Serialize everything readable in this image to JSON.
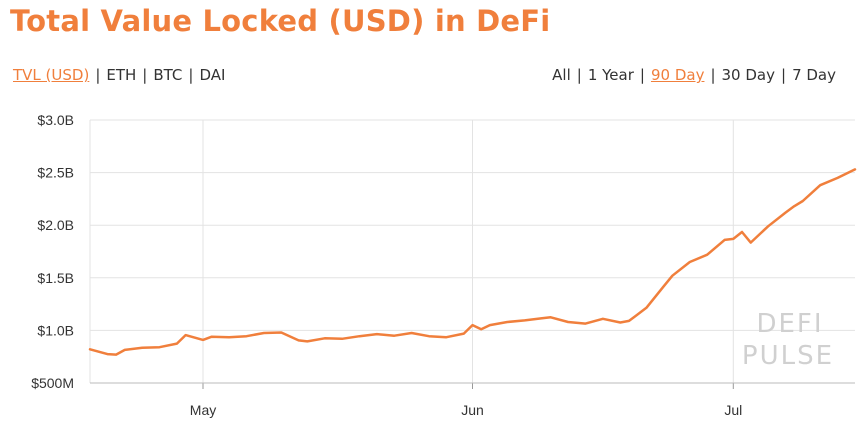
{
  "title": "Total Value Locked (USD) in DeFi",
  "series_toggle": [
    {
      "label": "TVL (USD)",
      "active": true
    },
    {
      "label": "ETH",
      "active": false
    },
    {
      "label": "BTC",
      "active": false
    },
    {
      "label": "DAI",
      "active": false
    }
  ],
  "range_toggle": [
    {
      "label": "All",
      "active": false
    },
    {
      "label": "1 Year",
      "active": false
    },
    {
      "label": "90 Day",
      "active": true
    },
    {
      "label": "30 Day",
      "active": false
    },
    {
      "label": "7 Day",
      "active": false
    }
  ],
  "watermark": [
    "DEFI",
    "PULSE"
  ],
  "colors": {
    "accent": "#f07f3c",
    "grid": "#e3e3e3",
    "text": "#333333"
  },
  "chart_data": {
    "type": "line",
    "title": "Total Value Locked (USD) in DeFi",
    "xlabel": "",
    "ylabel": "",
    "ylim": [
      500000000,
      3000000000
    ],
    "y_ticks": [
      500000000,
      1000000000,
      1500000000,
      2000000000,
      2500000000,
      3000000000
    ],
    "y_tick_labels": [
      "$500M",
      "$1.0B",
      "$1.5B",
      "$2.0B",
      "$2.5B",
      "$3.0B"
    ],
    "x_ticks": [
      {
        "label": "May",
        "date": "2020-05-01"
      },
      {
        "label": "Jun",
        "date": "2020-06-01"
      },
      {
        "label": "Jul",
        "date": "2020-07-01"
      }
    ],
    "xlim": [
      "2020-04-18",
      "2020-07-15"
    ],
    "grid": true,
    "legend": "none",
    "series": [
      {
        "color": "#f07f3c",
        "x": [
          "2020-04-18",
          "2020-04-20",
          "2020-04-21",
          "2020-04-22",
          "2020-04-24",
          "2020-04-26",
          "2020-04-28",
          "2020-04-29",
          "2020-05-01",
          "2020-05-02",
          "2020-05-04",
          "2020-05-06",
          "2020-05-08",
          "2020-05-10",
          "2020-05-12",
          "2020-05-13",
          "2020-05-15",
          "2020-05-17",
          "2020-05-19",
          "2020-05-21",
          "2020-05-23",
          "2020-05-25",
          "2020-05-27",
          "2020-05-29",
          "2020-05-31",
          "2020-06-01",
          "2020-06-02",
          "2020-06-03",
          "2020-06-05",
          "2020-06-07",
          "2020-06-09",
          "2020-06-10",
          "2020-06-12",
          "2020-06-14",
          "2020-06-16",
          "2020-06-18",
          "2020-06-19",
          "2020-06-21",
          "2020-06-23",
          "2020-06-24",
          "2020-06-26",
          "2020-06-28",
          "2020-06-30",
          "2020-07-01",
          "2020-07-02",
          "2020-07-03",
          "2020-07-05",
          "2020-07-07",
          "2020-07-08",
          "2020-07-09",
          "2020-07-11",
          "2020-07-13",
          "2020-07-15"
        ],
        "y": [
          820000000,
          775000000,
          770000000,
          815000000,
          835000000,
          840000000,
          875000000,
          955000000,
          910000000,
          940000000,
          935000000,
          945000000,
          975000000,
          980000000,
          905000000,
          895000000,
          925000000,
          920000000,
          945000000,
          965000000,
          950000000,
          975000000,
          945000000,
          935000000,
          970000000,
          1050000000,
          1010000000,
          1050000000,
          1080000000,
          1095000000,
          1115000000,
          1125000000,
          1080000000,
          1065000000,
          1110000000,
          1075000000,
          1090000000,
          1215000000,
          1420000000,
          1520000000,
          1650000000,
          1720000000,
          1860000000,
          1870000000,
          1935000000,
          1835000000,
          1990000000,
          2120000000,
          2180000000,
          2230000000,
          2380000000,
          2450000000,
          2530000000
        ]
      }
    ]
  }
}
